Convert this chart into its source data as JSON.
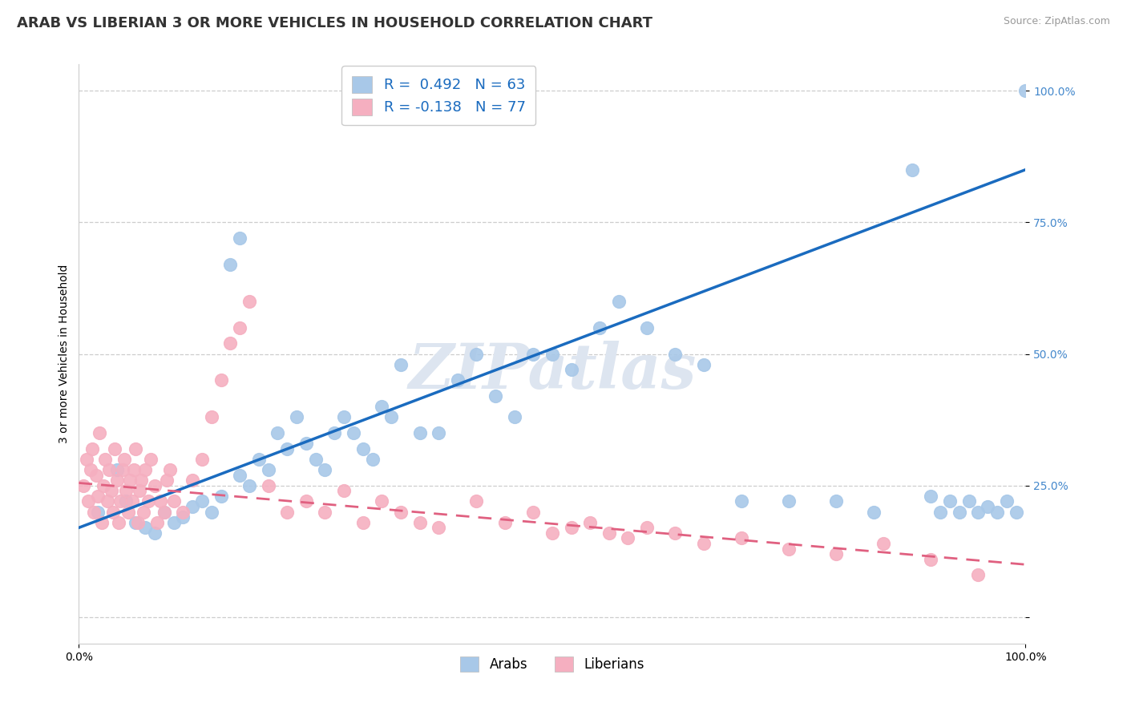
{
  "title": "ARAB VS LIBERIAN 3 OR MORE VEHICLES IN HOUSEHOLD CORRELATION CHART",
  "source_text": "Source: ZipAtlas.com",
  "ylabel": "3 or more Vehicles in Household",
  "xlim": [
    0,
    1
  ],
  "ylim": [
    -0.05,
    1.05
  ],
  "ytick_vals": [
    0.0,
    0.25,
    0.5,
    0.75,
    1.0
  ],
  "ytick_labels": [
    "",
    "25.0%",
    "50.0%",
    "75.0%",
    "100.0%"
  ],
  "xtick_vals": [
    0.0,
    1.0
  ],
  "xtick_labels": [
    "0.0%",
    "100.0%"
  ],
  "legend_arab_label": "R =  0.492   N = 63",
  "legend_lib_label": "R = -0.138   N = 77",
  "arab_color": "#a8c8e8",
  "liberian_color": "#f5afc0",
  "arab_line_color": "#1a6bbf",
  "liberian_line_color": "#e06080",
  "watermark_color": "#dde5f0",
  "grid_color": "#c8c8c8",
  "background_color": "#ffffff",
  "title_fontsize": 13,
  "axis_label_fontsize": 10,
  "tick_fontsize": 10,
  "arab_x": [
    0.02,
    0.04,
    0.05,
    0.06,
    0.07,
    0.08,
    0.09,
    0.1,
    0.11,
    0.12,
    0.13,
    0.14,
    0.15,
    0.16,
    0.17,
    0.17,
    0.18,
    0.19,
    0.2,
    0.21,
    0.22,
    0.23,
    0.24,
    0.25,
    0.26,
    0.27,
    0.28,
    0.29,
    0.3,
    0.31,
    0.32,
    0.33,
    0.34,
    0.36,
    0.38,
    0.4,
    0.42,
    0.44,
    0.46,
    0.48,
    0.5,
    0.52,
    0.55,
    0.57,
    0.6,
    0.63,
    0.66,
    0.7,
    0.75,
    0.8,
    0.84,
    0.88,
    0.9,
    0.91,
    0.92,
    0.93,
    0.94,
    0.95,
    0.96,
    0.97,
    0.98,
    0.99,
    1.0
  ],
  "arab_y": [
    0.2,
    0.28,
    0.22,
    0.18,
    0.17,
    0.16,
    0.2,
    0.18,
    0.19,
    0.21,
    0.22,
    0.2,
    0.23,
    0.67,
    0.27,
    0.72,
    0.25,
    0.3,
    0.28,
    0.35,
    0.32,
    0.38,
    0.33,
    0.3,
    0.28,
    0.35,
    0.38,
    0.35,
    0.32,
    0.3,
    0.4,
    0.38,
    0.48,
    0.35,
    0.35,
    0.45,
    0.5,
    0.42,
    0.38,
    0.5,
    0.5,
    0.47,
    0.55,
    0.6,
    0.55,
    0.5,
    0.48,
    0.22,
    0.22,
    0.22,
    0.2,
    0.85,
    0.23,
    0.2,
    0.22,
    0.2,
    0.22,
    0.2,
    0.21,
    0.2,
    0.22,
    0.2,
    1.0
  ],
  "lib_x": [
    0.005,
    0.008,
    0.01,
    0.012,
    0.014,
    0.016,
    0.018,
    0.02,
    0.022,
    0.024,
    0.026,
    0.028,
    0.03,
    0.032,
    0.034,
    0.036,
    0.038,
    0.04,
    0.042,
    0.044,
    0.046,
    0.048,
    0.05,
    0.052,
    0.054,
    0.056,
    0.058,
    0.06,
    0.062,
    0.064,
    0.066,
    0.068,
    0.07,
    0.073,
    0.076,
    0.08,
    0.083,
    0.086,
    0.09,
    0.093,
    0.096,
    0.1,
    0.11,
    0.12,
    0.13,
    0.14,
    0.15,
    0.16,
    0.17,
    0.18,
    0.2,
    0.22,
    0.24,
    0.26,
    0.28,
    0.3,
    0.32,
    0.34,
    0.36,
    0.38,
    0.42,
    0.45,
    0.48,
    0.5,
    0.52,
    0.54,
    0.56,
    0.58,
    0.6,
    0.63,
    0.66,
    0.7,
    0.75,
    0.8,
    0.85,
    0.9,
    0.95
  ],
  "lib_y": [
    0.25,
    0.3,
    0.22,
    0.28,
    0.32,
    0.2,
    0.27,
    0.23,
    0.35,
    0.18,
    0.25,
    0.3,
    0.22,
    0.28,
    0.24,
    0.2,
    0.32,
    0.26,
    0.18,
    0.22,
    0.28,
    0.3,
    0.24,
    0.2,
    0.26,
    0.22,
    0.28,
    0.32,
    0.18,
    0.24,
    0.26,
    0.2,
    0.28,
    0.22,
    0.3,
    0.25,
    0.18,
    0.22,
    0.2,
    0.26,
    0.28,
    0.22,
    0.2,
    0.26,
    0.3,
    0.38,
    0.45,
    0.52,
    0.55,
    0.6,
    0.25,
    0.2,
    0.22,
    0.2,
    0.24,
    0.18,
    0.22,
    0.2,
    0.18,
    0.17,
    0.22,
    0.18,
    0.2,
    0.16,
    0.17,
    0.18,
    0.16,
    0.15,
    0.17,
    0.16,
    0.14,
    0.15,
    0.13,
    0.12,
    0.14,
    0.11,
    0.08
  ]
}
